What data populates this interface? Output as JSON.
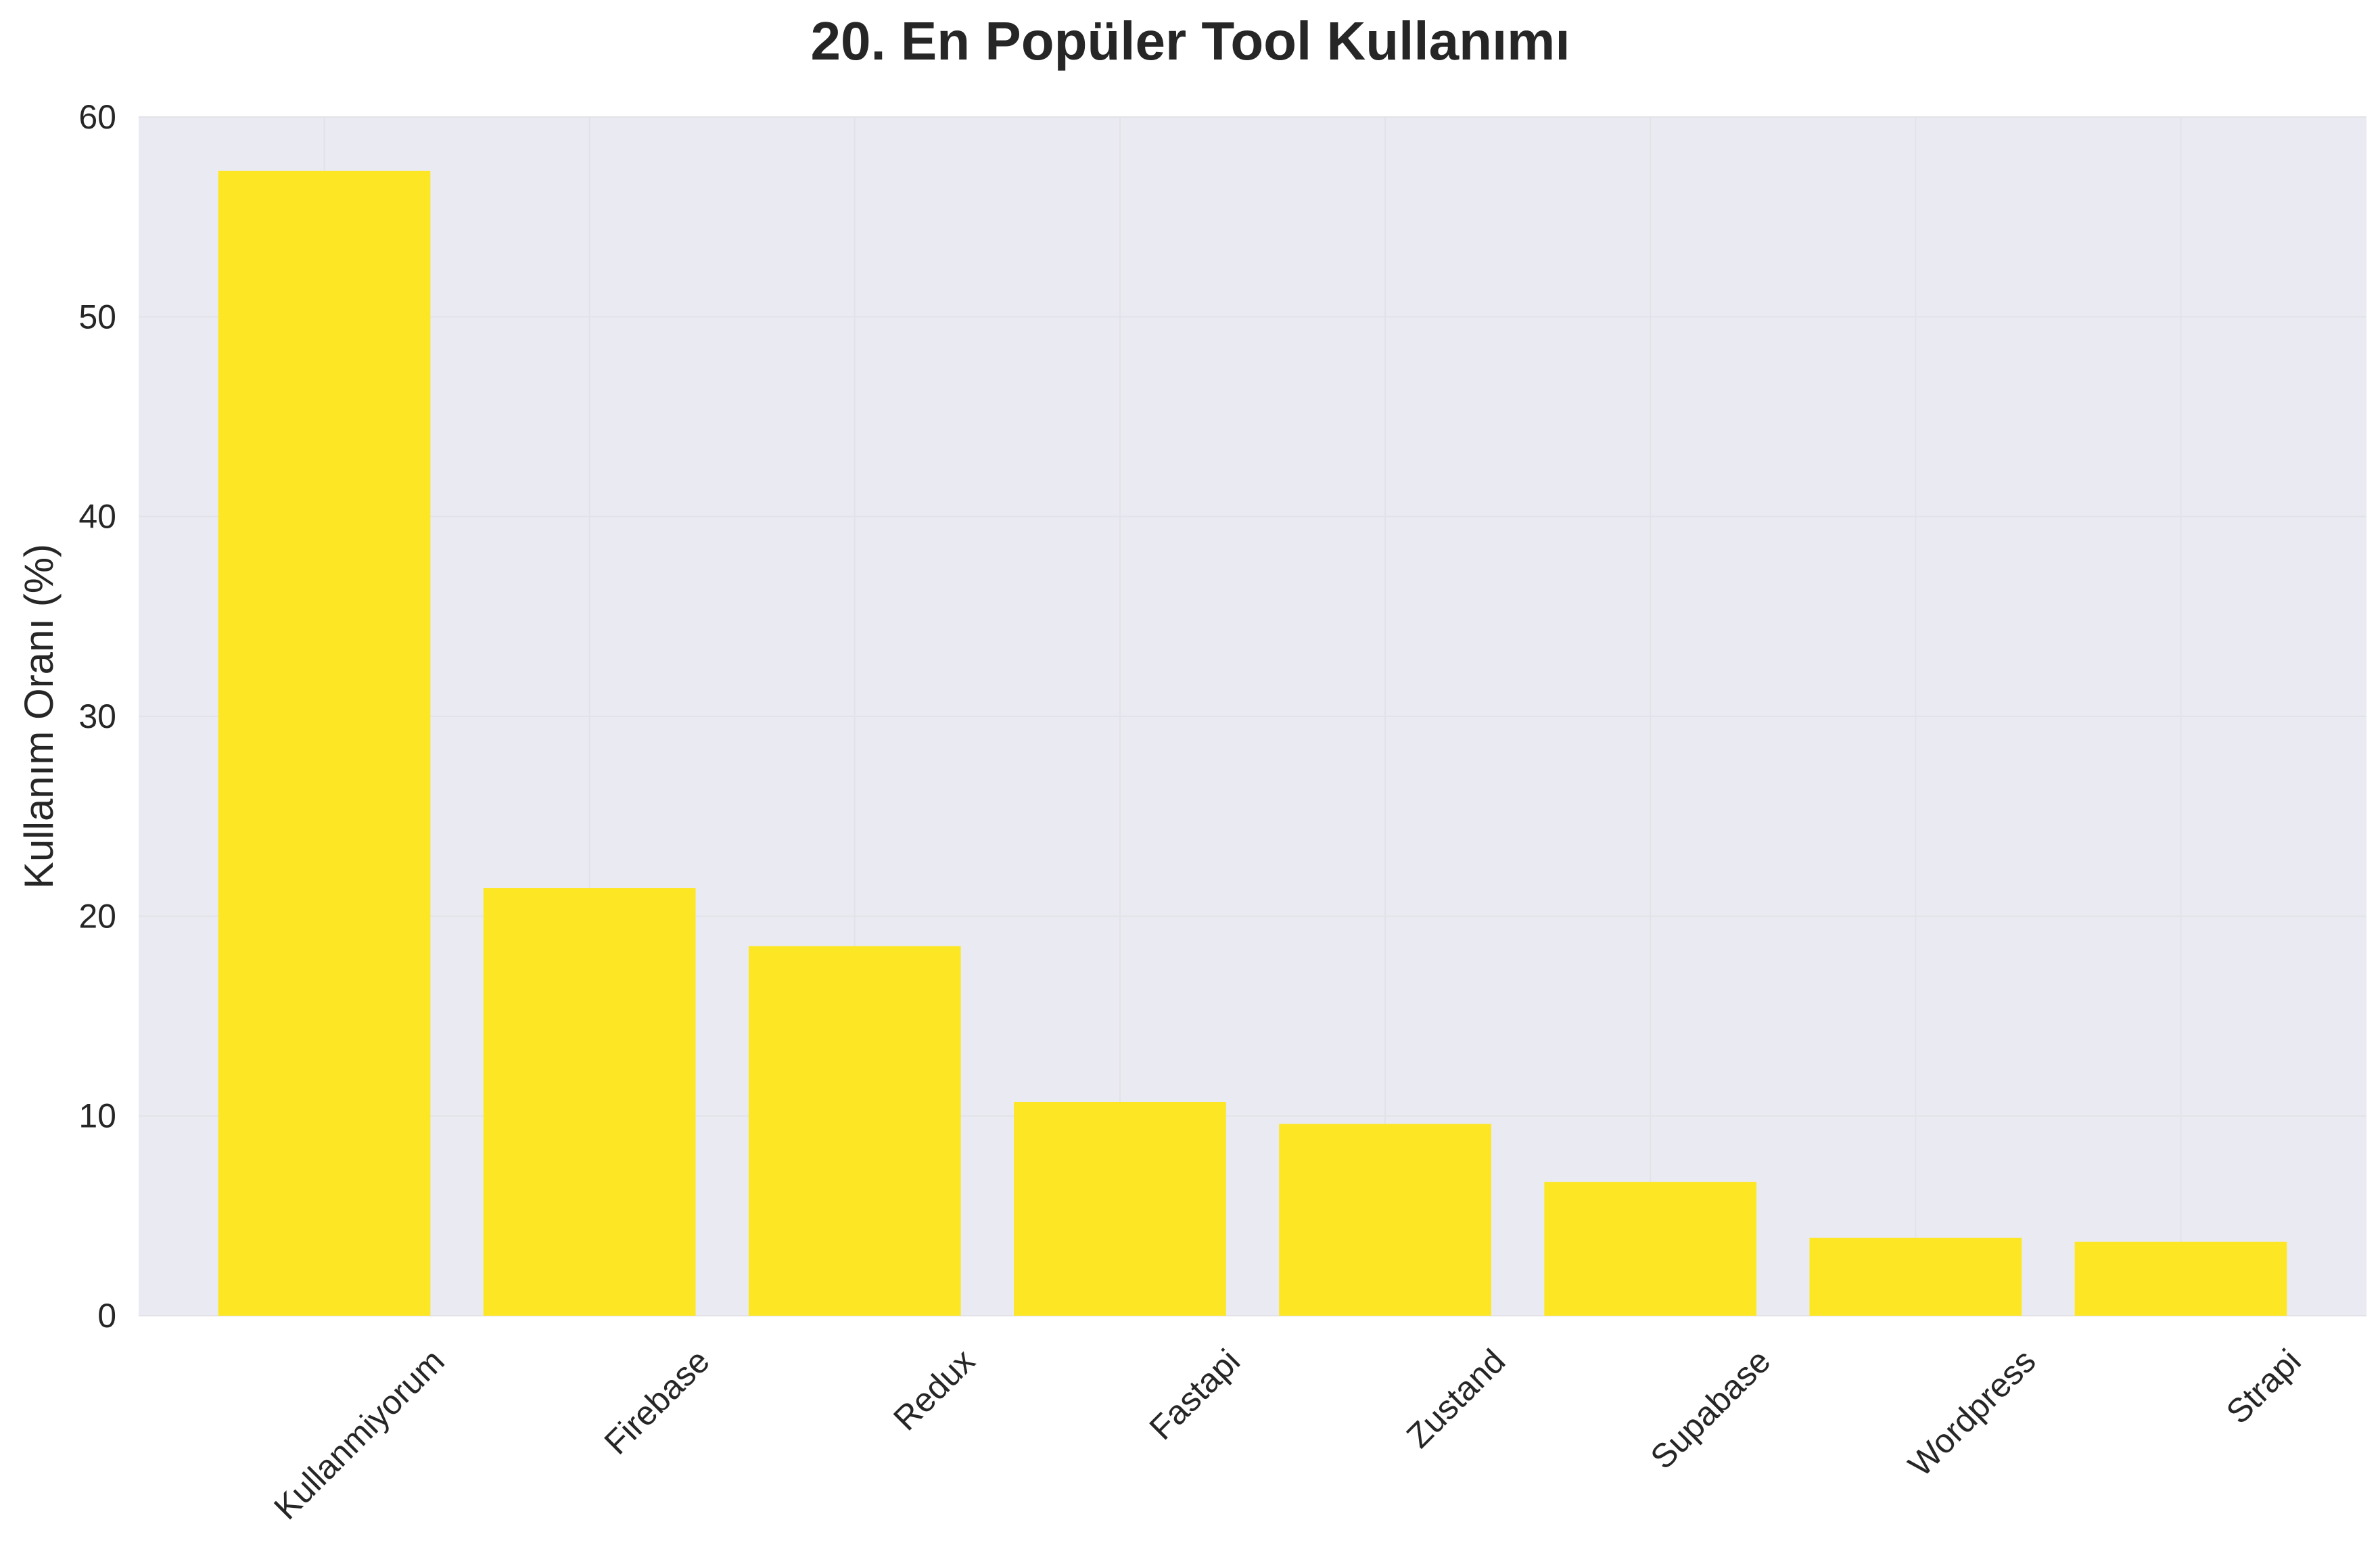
{
  "chart_data": {
    "type": "bar",
    "title": "20. En Popüler Tool Kullanımı",
    "xlabel": "",
    "ylabel": "Kullanım Oranı (%)",
    "categories": [
      "Kullanmiyorum",
      "Firebase",
      "Redux",
      "Fastapi",
      "Zustand",
      "Supabase",
      "Wordpress",
      "Strapi"
    ],
    "values": [
      57.3,
      21.4,
      18.5,
      10.7,
      9.6,
      6.7,
      3.9,
      3.7
    ],
    "ylim": [
      0,
      60
    ],
    "yticks": [
      "0",
      "10",
      "20",
      "30",
      "40",
      "50",
      "60"
    ],
    "grid": true,
    "colors": {
      "bar": "#fde724",
      "plot_background": "#eaeaf2",
      "grid": "#e2e2e8",
      "text": "#262626"
    }
  }
}
